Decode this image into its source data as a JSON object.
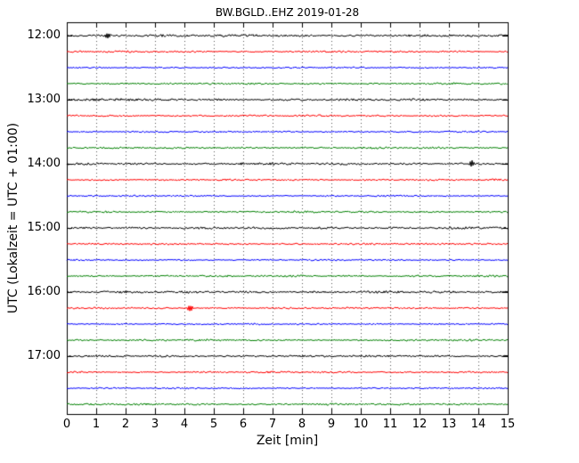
{
  "chart_data": {
    "type": "line",
    "subtype": "seismogram-dayplot",
    "title": "BW.BGLD..EHZ 2019-01-28",
    "xlabel": "Zeit  [min]",
    "ylabel": "UTC (Lokalzeit = UTC + 01:00)",
    "xlim": [
      0,
      15
    ],
    "interval_minutes": 15,
    "grid": "vertical-dotted",
    "legend": "none",
    "x_tick_labels": [
      "0",
      "1",
      "2",
      "3",
      "4",
      "5",
      "6",
      "7",
      "8",
      "9",
      "10",
      "11",
      "12",
      "13",
      "14",
      "15"
    ],
    "y_tick_labels": [
      "12:00",
      "13:00",
      "14:00",
      "15:00",
      "16:00",
      "17:00"
    ],
    "colors": {
      "black": "#000000",
      "red": "#ff0000",
      "blue": "#0000ff",
      "green": "#008000"
    },
    "traces": [
      {
        "start": "12:00",
        "color": "#000000",
        "noise": 1.0,
        "events": [
          {
            "x": 1.4,
            "amp": 4.5,
            "w": 0.13
          },
          {
            "x": 6.4,
            "amp": 1.0,
            "w": 0.35
          }
        ]
      },
      {
        "start": "12:15",
        "color": "#ff0000",
        "noise": 0.8,
        "events": []
      },
      {
        "start": "12:30",
        "color": "#0000ff",
        "noise": 0.7,
        "events": []
      },
      {
        "start": "12:45",
        "color": "#008000",
        "noise": 0.85,
        "events": []
      },
      {
        "start": "13:00",
        "color": "#000000",
        "noise": 1.0,
        "events": [
          {
            "x": 1.8,
            "amp": 0.9,
            "w": 0.5
          }
        ]
      },
      {
        "start": "13:15",
        "color": "#ff0000",
        "noise": 0.8,
        "events": []
      },
      {
        "start": "13:30",
        "color": "#0000ff",
        "noise": 0.7,
        "events": []
      },
      {
        "start": "13:45",
        "color": "#008000",
        "noise": 0.85,
        "events": [
          {
            "x": 6.9,
            "amp": 0.9,
            "w": 0.3
          }
        ]
      },
      {
        "start": "14:00",
        "color": "#000000",
        "noise": 1.0,
        "events": [
          {
            "x": 5.9,
            "amp": 1.1,
            "w": 0.2
          },
          {
            "x": 13.8,
            "amp": 4.0,
            "w": 0.13
          }
        ]
      },
      {
        "start": "14:15",
        "color": "#ff0000",
        "noise": 0.8,
        "events": []
      },
      {
        "start": "14:30",
        "color": "#0000ff",
        "noise": 0.7,
        "events": []
      },
      {
        "start": "14:45",
        "color": "#008000",
        "noise": 0.85,
        "events": []
      },
      {
        "start": "15:00",
        "color": "#000000",
        "noise": 1.0,
        "events": []
      },
      {
        "start": "15:15",
        "color": "#ff0000",
        "noise": 0.8,
        "events": []
      },
      {
        "start": "15:30",
        "color": "#0000ff",
        "noise": 0.7,
        "events": []
      },
      {
        "start": "15:45",
        "color": "#008000",
        "noise": 0.85,
        "events": []
      },
      {
        "start": "16:00",
        "color": "#000000",
        "noise": 1.0,
        "events": []
      },
      {
        "start": "16:15",
        "color": "#ff0000",
        "noise": 0.8,
        "events": [
          {
            "x": 4.2,
            "amp": 5.0,
            "w": 0.14
          }
        ]
      },
      {
        "start": "16:30",
        "color": "#0000ff",
        "noise": 0.7,
        "events": []
      },
      {
        "start": "16:45",
        "color": "#008000",
        "noise": 0.85,
        "events": []
      },
      {
        "start": "17:00",
        "color": "#000000",
        "noise": 0.9,
        "events": []
      },
      {
        "start": "17:15",
        "color": "#ff0000",
        "noise": 0.8,
        "events": []
      },
      {
        "start": "17:30",
        "color": "#0000ff",
        "noise": 0.7,
        "events": []
      },
      {
        "start": "17:45",
        "color": "#008000",
        "noise": 0.85,
        "events": []
      }
    ]
  }
}
